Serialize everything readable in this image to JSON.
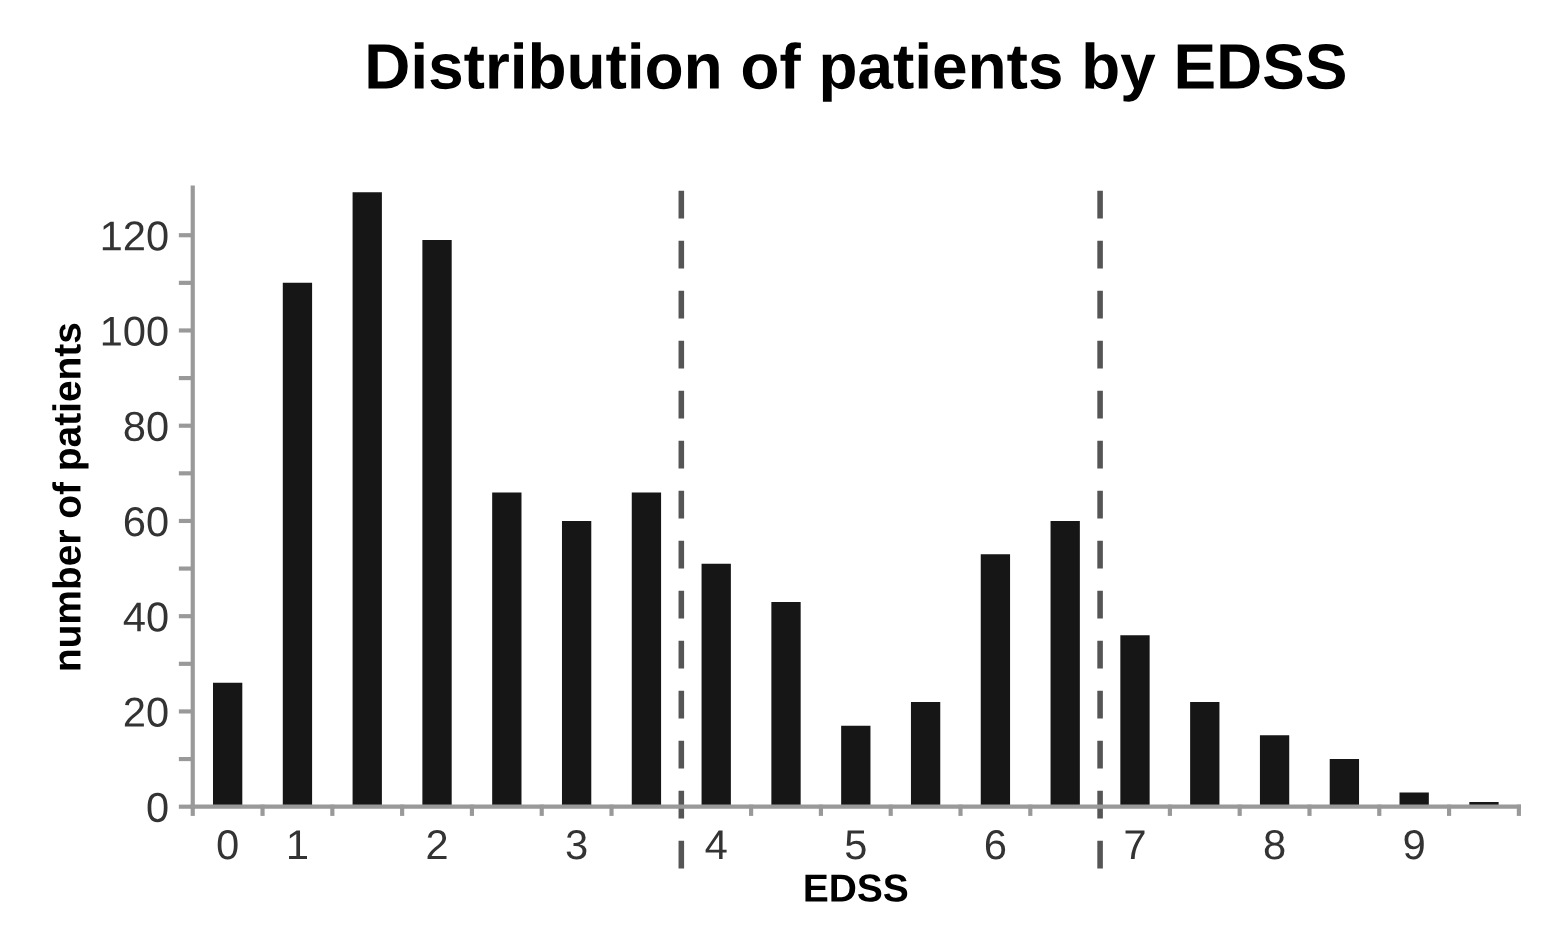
{
  "chart_data": {
    "type": "bar",
    "title": "Distribution of patients by EDSS",
    "xlabel": "EDSS",
    "ylabel": "number of patients",
    "categories": [
      "0",
      "1",
      null,
      "2",
      null,
      "3",
      null,
      "4",
      null,
      "5",
      null,
      "6",
      null,
      "7",
      null,
      "8",
      null,
      "9",
      null
    ],
    "values": [
      26,
      110,
      129,
      119,
      66,
      60,
      66,
      51,
      43,
      17,
      22,
      53,
      60,
      36,
      22,
      15,
      10,
      3,
      1
    ],
    "color": "#161616",
    "ylim": [
      0,
      130
    ],
    "yticks": [
      0,
      {
        "value": 10,
        "label": null
      },
      20,
      {
        "value": 30,
        "label": null
      },
      40,
      {
        "value": 50,
        "label": null
      },
      60,
      {
        "value": 70,
        "label": null
      },
      80,
      {
        "value": 90,
        "label": null
      },
      100,
      {
        "value": 110,
        "label": null
      },
      120
    ],
    "grid": false,
    "legend": false
  }
}
